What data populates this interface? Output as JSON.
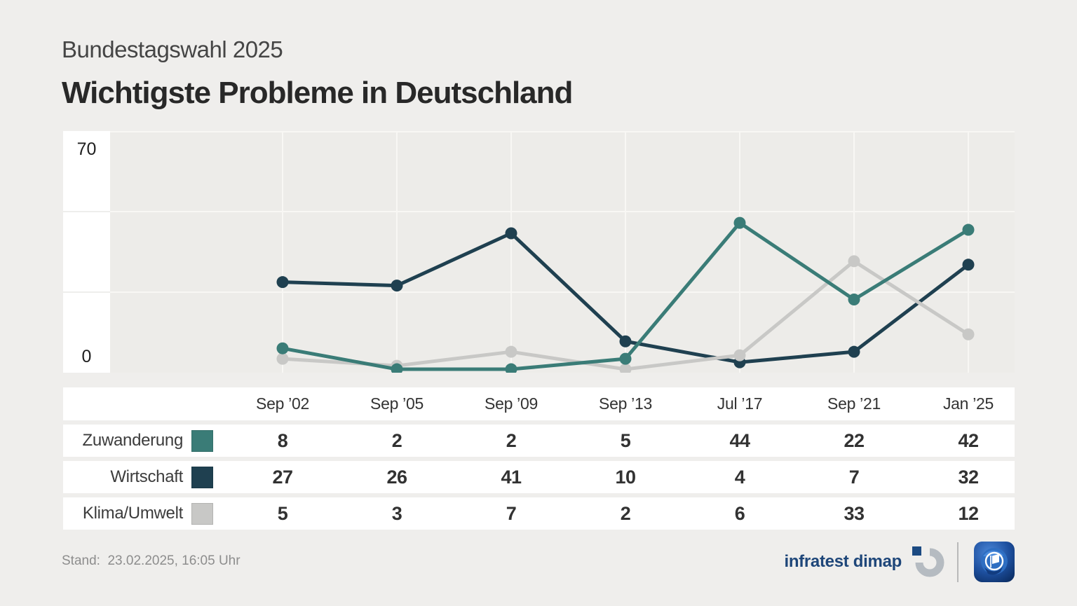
{
  "header": {
    "subtitle": "Bundestagswahl 2025",
    "title": "Wichtigste Probleme in Deutschland"
  },
  "chart_data": {
    "type": "line",
    "title": "Wichtigste Probleme in Deutschland",
    "subtitle": "Bundestagswahl 2025",
    "categories": [
      "Sep ’02",
      "Sep ’05",
      "Sep ’09",
      "Sep ’13",
      "Jul ’17",
      "Sep ’21",
      "Jan ’25"
    ],
    "series": [
      {
        "name": "Zuwanderung",
        "color": "#3A7C77",
        "values": [
          8,
          2,
          2,
          5,
          44,
          22,
          42
        ]
      },
      {
        "name": "Wirtschaft",
        "color": "#1F4050",
        "values": [
          27,
          26,
          41,
          10,
          4,
          7,
          32
        ]
      },
      {
        "name": "Klima/Umwelt",
        "color": "#C8C8C6",
        "values": [
          5,
          3,
          7,
          2,
          6,
          33,
          12
        ]
      }
    ],
    "xlabel": "",
    "ylabel": "",
    "ylim": [
      0,
      70
    ],
    "yticks": [
      {
        "value": 70,
        "label": "70"
      },
      {
        "value": 0,
        "label": "0"
      }
    ],
    "grid": true,
    "legend_position": "table-rows-left",
    "z_order": [
      "Wirtschaft",
      "Klima/Umwelt",
      "Zuwanderung"
    ]
  },
  "footer": {
    "stand": "Stand:  23.02.2025, 16:05 Uhr",
    "source_label": "infratest dimap"
  },
  "icons": {
    "infratest_mark": "infratest-dimap-ring-logo",
    "ard_mark": "ard-globe-logo"
  },
  "colors": {
    "page_bg": "#EFEEEC",
    "plot_bg": "#EDECE9",
    "gridline": "#F8F7F4",
    "label_col_bg": "#FFFFFF",
    "label_col_grid": "#E9E8E5",
    "row_bg": "#FFFFFF",
    "title_text": "#282828",
    "subtitle_text": "#454545",
    "table_text": "#333333",
    "stand_text": "#8D8D8D",
    "brand_blue": "#1E4679",
    "logo_gray": "#B5BBC1"
  }
}
